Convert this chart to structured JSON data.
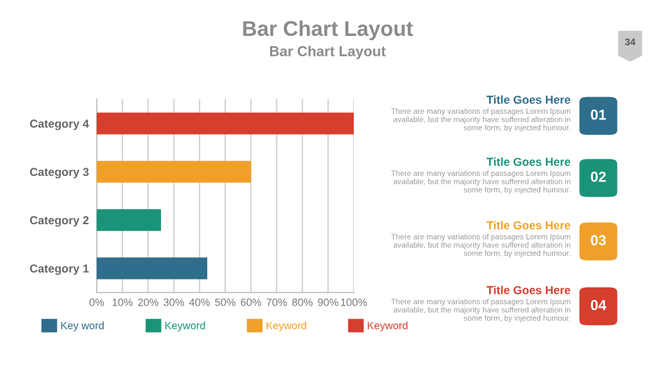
{
  "chart_data": {
    "type": "bar",
    "orientation": "horizontal",
    "stacked": true,
    "title": "Bar Chart Layout",
    "subtitle": "Bar Chart Layout",
    "categories": [
      "Category 4",
      "Category 3",
      "Category 2",
      "Category 1"
    ],
    "series": [
      {
        "name": "Key word",
        "color": "#2f6e8c",
        "values": [
          null,
          null,
          null,
          43
        ]
      },
      {
        "name": "Keyword",
        "color": "#1a9479",
        "values": [
          null,
          null,
          25,
          null
        ]
      },
      {
        "name": "Keyword",
        "color": "#f0a02a",
        "values": [
          null,
          60,
          null,
          null
        ]
      },
      {
        "name": "Keyword",
        "color": "#d63e2e",
        "values": [
          100,
          null,
          null,
          null
        ]
      }
    ],
    "xlim": [
      0,
      100
    ],
    "xticks": [
      {
        "value": 0,
        "label": "0%"
      },
      {
        "value": 10,
        "label": "10%"
      },
      {
        "value": 20,
        "label": "20%"
      },
      {
        "value": 30,
        "label": "30%"
      },
      {
        "value": 40,
        "label": "40%"
      },
      {
        "value": 50,
        "label": "50%"
      },
      {
        "value": 60,
        "label": "60%"
      },
      {
        "value": 70,
        "label": "70%"
      },
      {
        "value": 80,
        "label": "80%"
      },
      {
        "value": 90,
        "label": "90%"
      },
      {
        "value": 100,
        "label": "100%"
      }
    ],
    "grid": "x",
    "legend": "bottom",
    "annotations": [
      "34",
      "Title Goes Here",
      "There are many variations of passages Lorem Ipsum\navailable, but the majority have suffered alteration in\nsome form, by injected humour.",
      "01",
      "Title Goes Here",
      "There are many variations of passages Lorem Ipsum\navailable, but the majority have suffered alteration in\nsome form, by injected humour.",
      "02",
      "Title Goes Here",
      "There are many variations of passages Lorem Ipsum\navailable, but the majority have suffered alteration in\nsome form, by injected humour.",
      "03",
      "Title Goes Here",
      "There are many variations of passages Lorem Ipsum\navailable, but the majority have suffered alteration in\nsome form, by injected humour.",
      "04"
    ]
  }
}
